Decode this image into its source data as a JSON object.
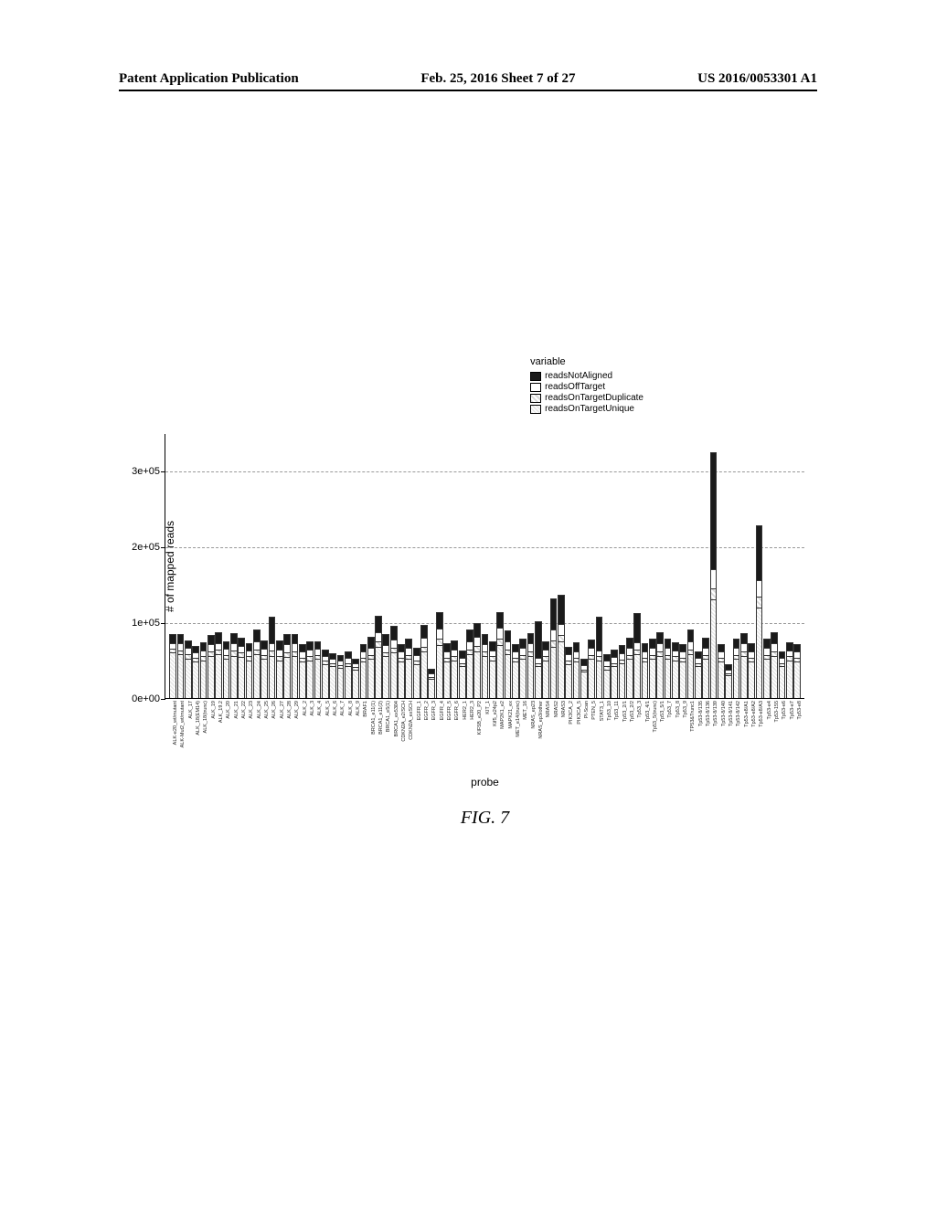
{
  "header": {
    "left": "Patent Application Publication",
    "center": "Feb. 25, 2016  Sheet 7 of 27",
    "right": "US 2016/0053301 A1"
  },
  "figure_caption": "FIG. 7",
  "chart": {
    "type": "stacked-bar",
    "ylabel": "# of mapped reads",
    "xlabel": "probe",
    "ylim": [
      0,
      350000
    ],
    "yticks": [
      {
        "value": 0,
        "label": "0e+00"
      },
      {
        "value": 100000,
        "label": "1e+05"
      },
      {
        "value": 200000,
        "label": "2e+05"
      },
      {
        "value": 300000,
        "label": "3e+05"
      }
    ],
    "legend": {
      "title": "variable",
      "items": [
        {
          "name": "readsNotAligned",
          "pattern": "crosshatch-dark"
        },
        {
          "name": "readsOffTarget",
          "pattern": "white"
        },
        {
          "name": "readsOnTargetDuplicate",
          "pattern": "diag-light"
        },
        {
          "name": "readsOnTargetUnique",
          "pattern": "crosshatch-light"
        }
      ]
    },
    "colors": {
      "crosshatch-dark": "#1a1a1a",
      "white": "#ffffff",
      "diag-light": "#d9d9d9",
      "crosshatch-light": "#e8e8e8",
      "border": "#000000",
      "grid": "#999999",
      "background": "#ffffff"
    },
    "probes": [
      {
        "label": "ALK-e20_wt/mutant",
        "v": [
          60000,
          5000,
          8000,
          12000
        ]
      },
      {
        "label": "ALK-Mut2_wt/mutant",
        "v": [
          58000,
          5000,
          9000,
          13000
        ]
      },
      {
        "label": "ALK_17",
        "v": [
          52000,
          6000,
          8000,
          10000
        ]
      },
      {
        "label": "ALK_18(EM14)",
        "v": [
          48000,
          5000,
          7000,
          9000
        ]
      },
      {
        "label": "ALK_18(trunc)",
        "v": [
          50000,
          5000,
          8000,
          11000
        ]
      },
      {
        "label": "ALK_19",
        "v": [
          55000,
          6000,
          10000,
          12000
        ]
      },
      {
        "label": "ALK_19.2",
        "v": [
          58000,
          6000,
          9000,
          14000
        ]
      },
      {
        "label": "ALK_20",
        "v": [
          52000,
          5000,
          8000,
          10000
        ]
      },
      {
        "label": "ALK_21",
        "v": [
          56000,
          7000,
          10000,
          13000
        ]
      },
      {
        "label": "ALK_22",
        "v": [
          54000,
          6000,
          9000,
          11000
        ]
      },
      {
        "label": "ALK_23",
        "v": [
          50000,
          5000,
          8000,
          10000
        ]
      },
      {
        "label": "ALK_24",
        "v": [
          58000,
          6000,
          11000,
          15000
        ]
      },
      {
        "label": "ALK_25",
        "v": [
          52000,
          5000,
          8000,
          11000
        ]
      },
      {
        "label": "ALK_26",
        "v": [
          56000,
          7000,
          10000,
          35000
        ]
      },
      {
        "label": "ALK_27",
        "v": [
          50000,
          5000,
          9000,
          12000
        ]
      },
      {
        "label": "ALK_28",
        "v": [
          54000,
          6000,
          11000,
          14000
        ]
      },
      {
        "label": "ALK_29",
        "v": [
          56000,
          6000,
          10000,
          13000
        ]
      },
      {
        "label": "ALK_2",
        "v": [
          48000,
          5000,
          8000,
          10000
        ]
      },
      {
        "label": "ALK_3",
        "v": [
          50000,
          5000,
          9000,
          11000
        ]
      },
      {
        "label": "ALK_4",
        "v": [
          52000,
          5000,
          8000,
          10000
        ]
      },
      {
        "label": "ALK_5",
        "v": [
          45000,
          4000,
          7000,
          8000
        ]
      },
      {
        "label": "ALK_6",
        "v": [
          42000,
          4000,
          6000,
          7000
        ]
      },
      {
        "label": "ALK_7",
        "v": [
          40000,
          4000,
          6000,
          7000
        ]
      },
      {
        "label": "ALK_8",
        "v": [
          42000,
          4000,
          7000,
          8000
        ]
      },
      {
        "label": "ALK_9",
        "v": [
          38000,
          3000,
          5000,
          6000
        ]
      },
      {
        "label": "BRAF1",
        "v": [
          48000,
          5000,
          8000,
          10000
        ]
      },
      {
        "label": "BRCA1_e11(1)",
        "v": [
          52000,
          5000,
          9000,
          15000
        ]
      },
      {
        "label": "BRCA1_e11(2)",
        "v": [
          68000,
          7000,
          12000,
          22000
        ]
      },
      {
        "label": "BRCA1_e5(1)",
        "v": [
          55000,
          5000,
          10000,
          14000
        ]
      },
      {
        "label": "BRCA1_ex5304",
        "v": [
          60000,
          6000,
          11000,
          18000
        ]
      },
      {
        "label": "CDKN2A_e2/SCH",
        "v": [
          48000,
          5000,
          8000,
          10000
        ]
      },
      {
        "label": "CDKN2A_exSCH",
        "v": [
          52000,
          5000,
          9000,
          12000
        ]
      },
      {
        "label": "EGFR_1",
        "v": [
          45000,
          4000,
          8000,
          9000
        ]
      },
      {
        "label": "EGFR_2",
        "v": [
          62000,
          6000,
          12000,
          16000
        ]
      },
      {
        "label": "EGFR_3",
        "v": [
          25000,
          3000,
          5000,
          6000
        ]
      },
      {
        "label": "EGFR_4",
        "v": [
          70000,
          8000,
          14000,
          22000
        ]
      },
      {
        "label": "EGFR_5",
        "v": [
          48000,
          5000,
          8000,
          11000
        ]
      },
      {
        "label": "EGFR_6",
        "v": [
          50000,
          5000,
          9000,
          12000
        ]
      },
      {
        "label": "HER2_1",
        "v": [
          42000,
          4000,
          7000,
          10000
        ]
      },
      {
        "label": "HER2_3",
        "v": [
          58000,
          6000,
          11000,
          15000
        ]
      },
      {
        "label": "KIF5B_e20_P2",
        "v": [
          62000,
          7000,
          12000,
          18000
        ]
      },
      {
        "label": "KIT_1",
        "v": [
          55000,
          6000,
          10000,
          14000
        ]
      },
      {
        "label": "Kif5_e24p2",
        "v": [
          50000,
          5000,
          8000,
          12000
        ]
      },
      {
        "label": "MAP2K1_e2",
        "v": [
          70000,
          8000,
          15000,
          20000
        ]
      },
      {
        "label": "MAPK21_ex",
        "v": [
          58000,
          6000,
          11000,
          14000
        ]
      },
      {
        "label": "MET_e14(trunc)",
        "v": [
          48000,
          5000,
          8000,
          10000
        ]
      },
      {
        "label": "MET_16",
        "v": [
          52000,
          5000,
          9000,
          12000
        ]
      },
      {
        "label": "NRAS_ep23",
        "v": [
          56000,
          6000,
          10000,
          14000
        ]
      },
      {
        "label": "NRAS_ep3/other",
        "v": [
          42000,
          4000,
          7000,
          48000
        ]
      },
      {
        "label": "NRAS4",
        "v": [
          50000,
          5000,
          9000,
          11000
        ]
      },
      {
        "label": "NRAS2",
        "v": [
          68000,
          8000,
          14000,
          42000
        ]
      },
      {
        "label": "NRAS3",
        "v": [
          75000,
          8000,
          15000,
          38000
        ]
      },
      {
        "label": "PIK3CA_2",
        "v": [
          45000,
          5000,
          8000,
          10000
        ]
      },
      {
        "label": "PIK3CA_5",
        "v": [
          48000,
          5000,
          9000,
          12000
        ]
      },
      {
        "label": "Pl-Scan",
        "v": [
          35000,
          3000,
          6000,
          8000
        ]
      },
      {
        "label": "PTEN_5",
        "v": [
          52000,
          5000,
          9000,
          11000
        ]
      },
      {
        "label": "STAT3_1",
        "v": [
          50000,
          5000,
          8000,
          45000
        ]
      },
      {
        "label": "Tp53_10",
        "v": [
          38000,
          4000,
          7000,
          9000
        ]
      },
      {
        "label": "Tp53_11",
        "v": [
          42000,
          4000,
          8000,
          10000
        ]
      },
      {
        "label": "Tp53_2/1",
        "v": [
          46000,
          5000,
          8000,
          11000
        ]
      },
      {
        "label": "Tp53_2/2",
        "v": [
          52000,
          5000,
          9000,
          14000
        ]
      },
      {
        "label": "Tp53_3",
        "v": [
          58000,
          6000,
          10000,
          38000
        ]
      },
      {
        "label": "Tp53_4/1",
        "v": [
          48000,
          5000,
          8000,
          12000
        ]
      },
      {
        "label": "Tp53_5(trunc)",
        "v": [
          52000,
          5000,
          9000,
          13000
        ]
      },
      {
        "label": "Tp53_5/1",
        "v": [
          56000,
          6000,
          10000,
          15000
        ]
      },
      {
        "label": "Tp53_7",
        "v": [
          52000,
          5000,
          9000,
          12000
        ]
      },
      {
        "label": "Tp53_8",
        "v": [
          50000,
          5000,
          8000,
          11000
        ]
      },
      {
        "label": "Tp53_9",
        "v": [
          48000,
          5000,
          8000,
          10000
        ]
      },
      {
        "label": "TP53&Trunc1",
        "v": [
          58000,
          6000,
          11000,
          15000
        ]
      },
      {
        "label": "Tp53-8/135",
        "v": [
          42000,
          4000,
          7000,
          9000
        ]
      },
      {
        "label": "Tp53-8/136",
        "v": [
          52000,
          5000,
          9000,
          14000
        ]
      },
      {
        "label": "Tp53-8/139",
        "v": [
          130000,
          15000,
          25000,
          155000
        ]
      },
      {
        "label": "Tp53-8/140",
        "v": [
          48000,
          5000,
          8000,
          10000
        ]
      },
      {
        "label": "Tp53-8/141",
        "v": [
          30000,
          3000,
          5000,
          7000
        ]
      },
      {
        "label": "Tp53-8/142",
        "v": [
          52000,
          5000,
          9000,
          12000
        ]
      },
      {
        "label": "Tp53-e8/A1",
        "v": [
          56000,
          6000,
          10000,
          14000
        ]
      },
      {
        "label": "Tp53-e8/A2",
        "v": [
          48000,
          5000,
          8000,
          11000
        ]
      },
      {
        "label": "Tp53-e8/A3",
        "v": [
          120000,
          14000,
          22000,
          72000
        ]
      },
      {
        "label": "Tp53-e4",
        "v": [
          52000,
          5000,
          9000,
          12000
        ]
      },
      {
        "label": "Tp53-155",
        "v": [
          56000,
          6000,
          10000,
          15000
        ]
      },
      {
        "label": "Tp53-e6",
        "v": [
          42000,
          4000,
          7000,
          9000
        ]
      },
      {
        "label": "Tp53-e7",
        "v": [
          50000,
          5000,
          8000,
          11000
        ]
      },
      {
        "label": "Tp53-e8",
        "v": [
          48000,
          5000,
          8000,
          10000
        ]
      }
    ]
  }
}
